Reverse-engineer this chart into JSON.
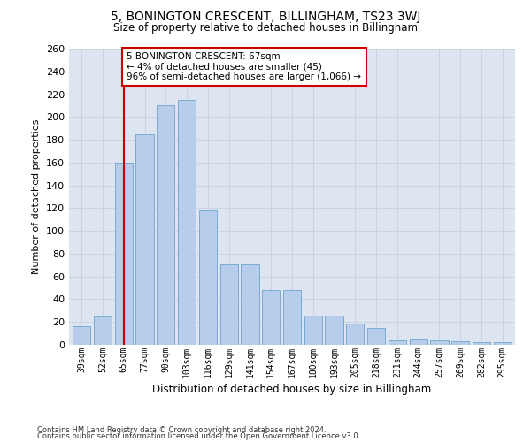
{
  "title": "5, BONINGTON CRESCENT, BILLINGHAM, TS23 3WJ",
  "subtitle": "Size of property relative to detached houses in Billingham",
  "xlabel": "Distribution of detached houses by size in Billingham",
  "ylabel": "Number of detached properties",
  "categories": [
    "39sqm",
    "52sqm",
    "65sqm",
    "77sqm",
    "90sqm",
    "103sqm",
    "116sqm",
    "129sqm",
    "141sqm",
    "154sqm",
    "167sqm",
    "180sqm",
    "193sqm",
    "205sqm",
    "218sqm",
    "231sqm",
    "244sqm",
    "257sqm",
    "269sqm",
    "282sqm",
    "295sqm"
  ],
  "values": [
    16,
    25,
    160,
    185,
    210,
    215,
    118,
    71,
    71,
    48,
    48,
    26,
    26,
    19,
    15,
    4,
    5,
    4,
    3,
    2,
    2
  ],
  "bar_color": "#b8ccec",
  "bar_edge_color": "#7aaad4",
  "grid_color": "#c8d0dc",
  "bg_color": "#dde5f0",
  "vline_x": 2,
  "vline_color": "#cc0000",
  "annotation_text": "5 BONINGTON CRESCENT: 67sqm\n← 4% of detached houses are smaller (45)\n96% of semi-detached houses are larger (1,066) →",
  "annotation_box_color": "#cc0000",
  "footer1": "Contains HM Land Registry data © Crown copyright and database right 2024.",
  "footer2": "Contains public sector information licensed under the Open Government Licence v3.0.",
  "ylim": [
    0,
    260
  ],
  "yticks": [
    0,
    20,
    40,
    60,
    80,
    100,
    120,
    140,
    160,
    180,
    200,
    220,
    240,
    260
  ]
}
